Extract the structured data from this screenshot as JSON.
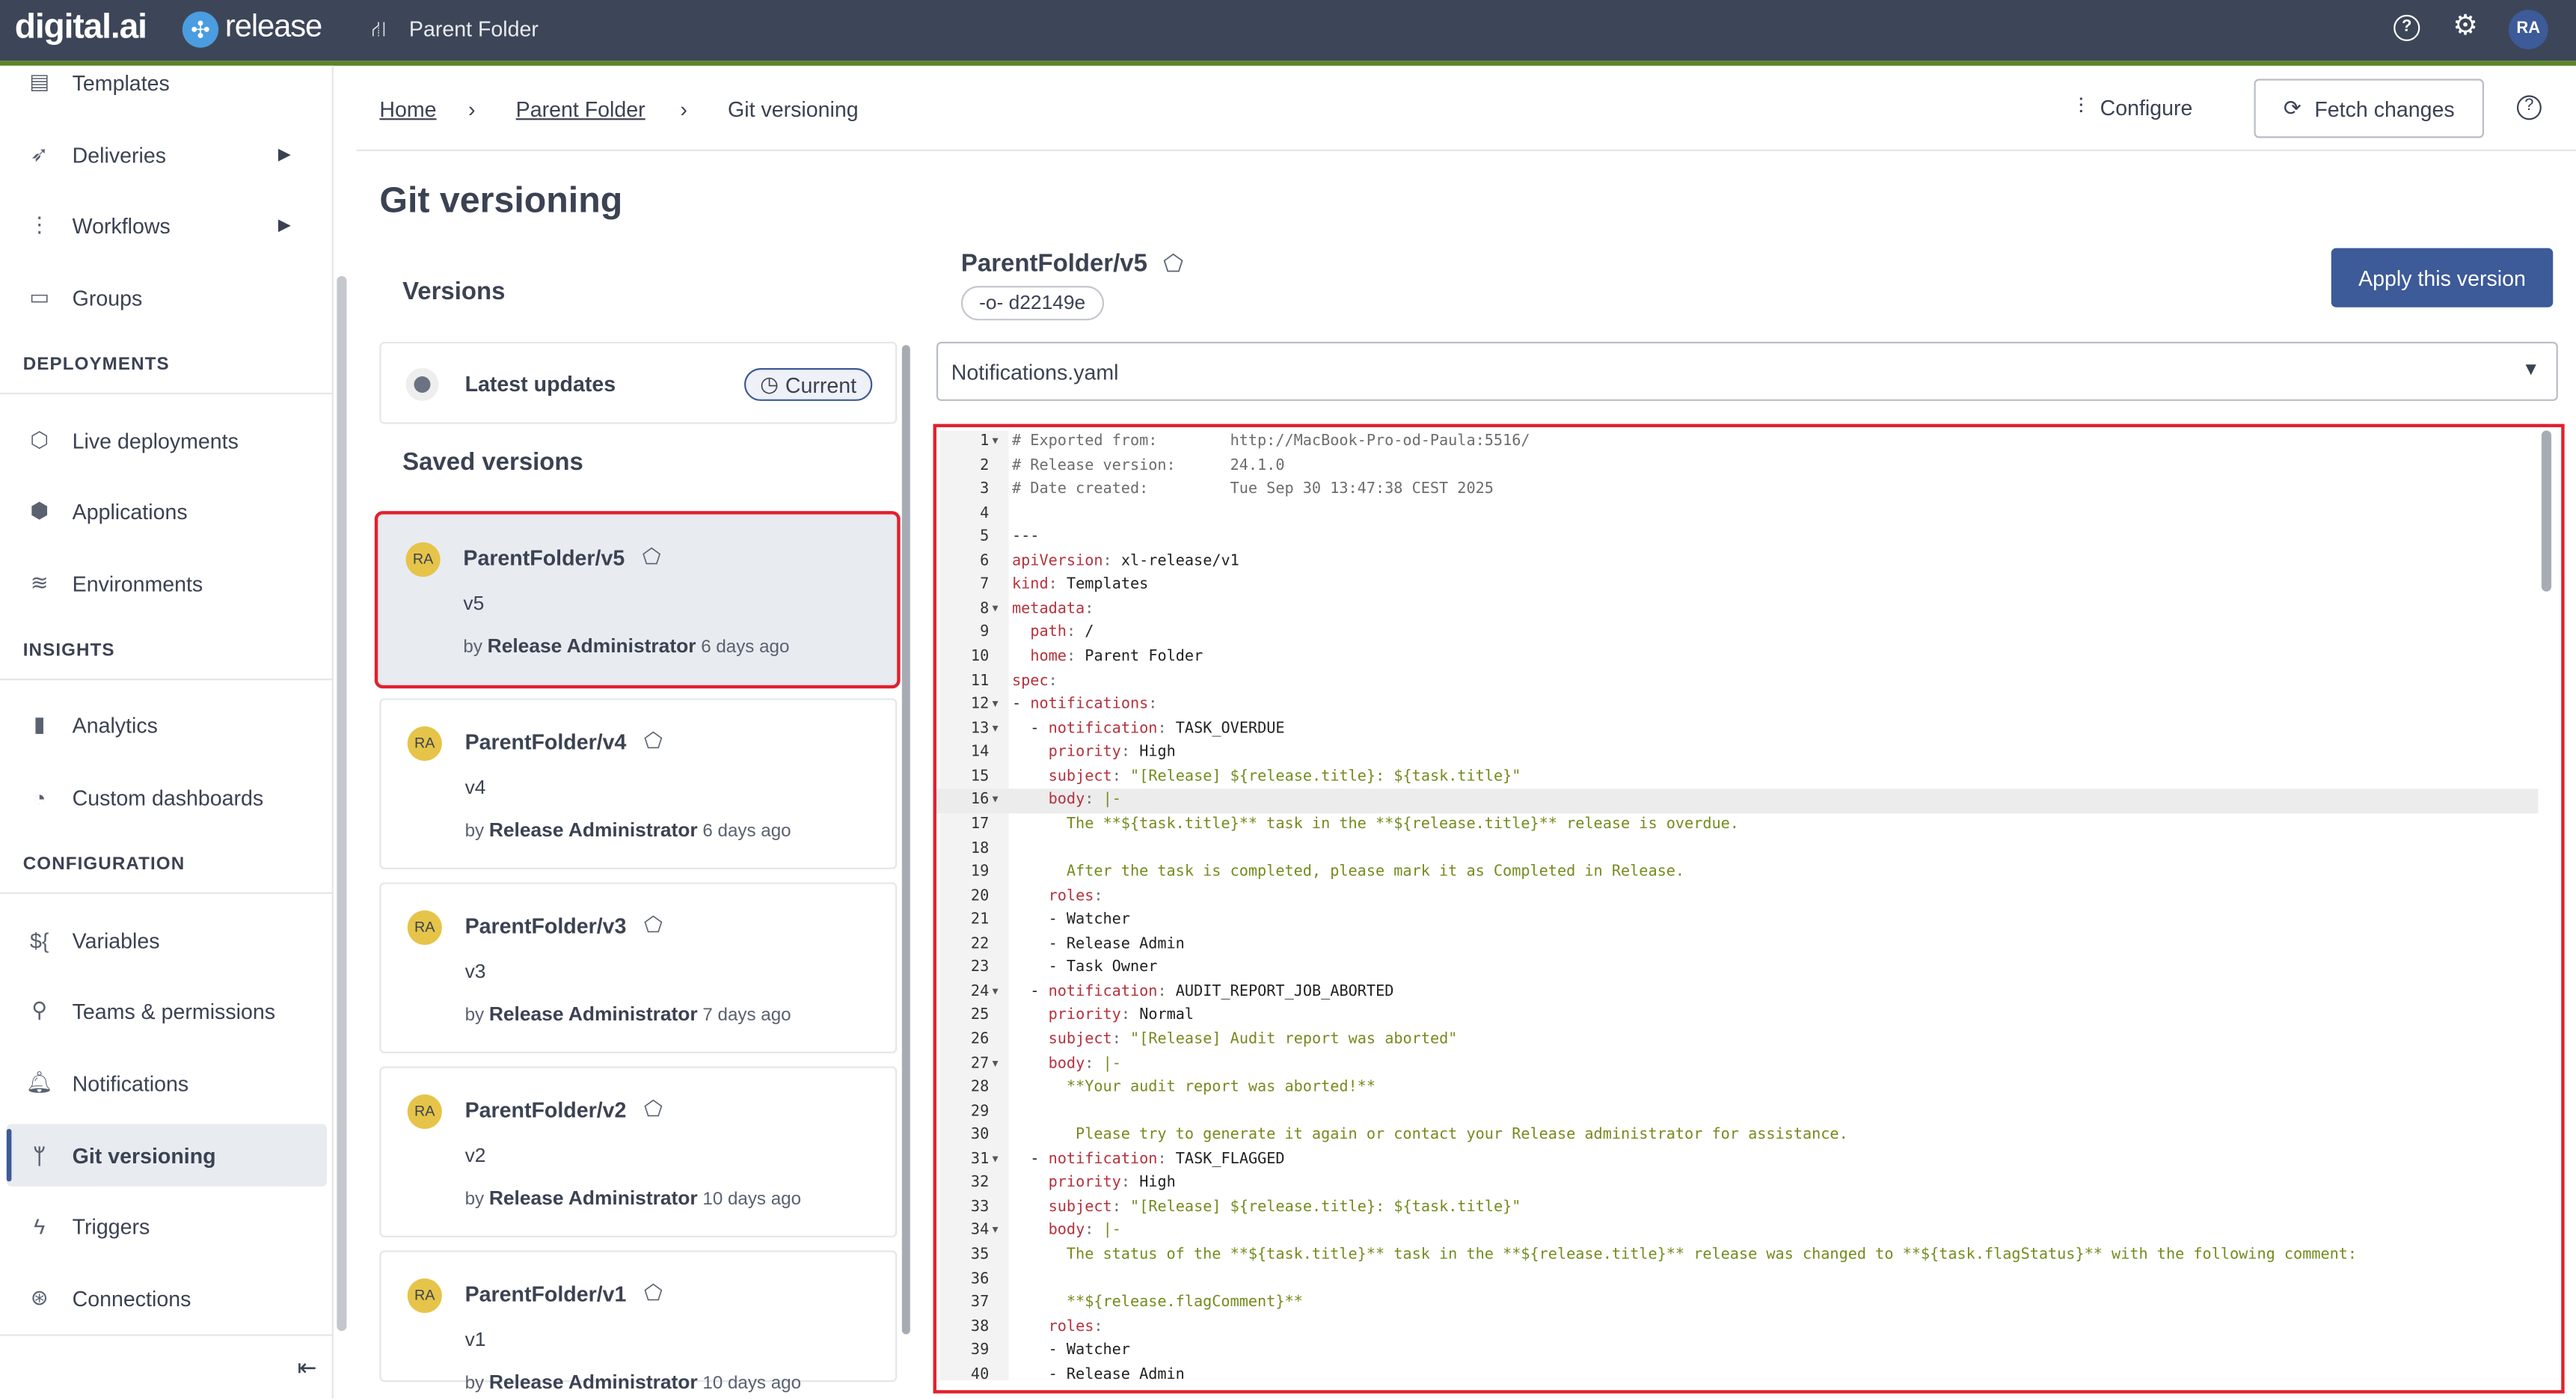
{
  "header": {
    "brand": "digital.ai",
    "product": "release",
    "folder": "Parent Folder",
    "avatar": "RA",
    "icons": [
      "help-icon",
      "gear-icon"
    ]
  },
  "sidebar": {
    "items": [
      {
        "label": "Templates",
        "icon": "template-icon"
      },
      {
        "label": "Deliveries",
        "icon": "rocket-icon",
        "arrow": true
      },
      {
        "label": "Workflows",
        "icon": "workflow-icon",
        "arrow": true
      },
      {
        "label": "Groups",
        "icon": "groups-icon"
      },
      {
        "label": "Live deployments",
        "icon": "cube-icon"
      },
      {
        "label": "Applications",
        "icon": "box-icon"
      },
      {
        "label": "Environments",
        "icon": "environment-icon"
      },
      {
        "label": "Analytics",
        "icon": "bar-chart-icon"
      },
      {
        "label": "Custom dashboards",
        "icon": "dashboard-icon"
      },
      {
        "label": "Variables",
        "icon": "variable-icon"
      },
      {
        "label": "Teams & permissions",
        "icon": "team-icon"
      },
      {
        "label": "Notifications",
        "icon": "bell-icon"
      },
      {
        "label": "Git versioning",
        "icon": "git-branch-icon",
        "active": true
      },
      {
        "label": "Triggers",
        "icon": "lightning-icon"
      },
      {
        "label": "Connections",
        "icon": "connection-icon"
      }
    ],
    "sections": [
      "DEPLOYMENTS",
      "INSIGHTS",
      "CONFIGURATION"
    ]
  },
  "breadcrumb": [
    "Home",
    "Parent Folder",
    "Git versioning"
  ],
  "toolbar": {
    "configure": "Configure",
    "fetch": "Fetch changes"
  },
  "page": {
    "title": "Git versioning"
  },
  "versions": {
    "title": "Versions",
    "latest": "Latest updates",
    "current": "Current",
    "saved_title": "Saved versions",
    "items": [
      {
        "name": "ParentFolder/v5",
        "version": "v5",
        "by": "by",
        "author": "Release Administrator",
        "ago": "6 days ago",
        "avatar": "RA",
        "selected": true
      },
      {
        "name": "ParentFolder/v4",
        "version": "v4",
        "by": "by",
        "author": "Release Administrator",
        "ago": "6 days ago",
        "avatar": "RA"
      },
      {
        "name": "ParentFolder/v3",
        "version": "v3",
        "by": "by",
        "author": "Release Administrator",
        "ago": "7 days ago",
        "avatar": "RA"
      },
      {
        "name": "ParentFolder/v2",
        "version": "v2",
        "by": "by",
        "author": "Release Administrator",
        "ago": "10 days ago",
        "avatar": "RA"
      },
      {
        "name": "ParentFolder/v1",
        "version": "v1",
        "by": "by",
        "author": "Release Administrator",
        "ago": "10 days ago",
        "avatar": "RA"
      }
    ]
  },
  "detail": {
    "name": "ParentFolder/v5",
    "commit": "d22149e",
    "apply": "Apply this version",
    "file": "Notifications.yaml"
  },
  "editor": {
    "highlight_line": 16,
    "fold_lines": [
      1,
      8,
      12,
      13,
      16,
      24,
      27,
      31,
      34
    ],
    "lines": [
      [
        [
          "c",
          "# Exported from:        http://MacBook-Pro-od-Paula:5516/"
        ]
      ],
      [
        [
          "c",
          "# Release version:      24.1.0"
        ]
      ],
      [
        [
          "c",
          "# Date created:         Tue Sep 30 13:47:38 CEST 2025"
        ]
      ],
      [],
      [
        [
          "p",
          "---"
        ]
      ],
      [
        [
          "k",
          "apiVersion"
        ],
        [
          "c",
          ": "
        ],
        [
          "p",
          "xl-release/v1"
        ]
      ],
      [
        [
          "k",
          "kind"
        ],
        [
          "c",
          ": "
        ],
        [
          "p",
          "Templates"
        ]
      ],
      [
        [
          "k",
          "metadata"
        ],
        [
          "c",
          ":"
        ]
      ],
      [
        [
          "p",
          "  "
        ],
        [
          "k",
          "path"
        ],
        [
          "c",
          ": "
        ],
        [
          "p",
          "/"
        ]
      ],
      [
        [
          "p",
          "  "
        ],
        [
          "k",
          "home"
        ],
        [
          "c",
          ": "
        ],
        [
          "p",
          "Parent Folder"
        ]
      ],
      [
        [
          "k",
          "spec"
        ],
        [
          "c",
          ":"
        ]
      ],
      [
        [
          "p",
          "- "
        ],
        [
          "k",
          "notifications"
        ],
        [
          "c",
          ":"
        ]
      ],
      [
        [
          "p",
          "  - "
        ],
        [
          "k",
          "notification"
        ],
        [
          "c",
          ": "
        ],
        [
          "p",
          "TASK_OVERDUE"
        ]
      ],
      [
        [
          "p",
          "    "
        ],
        [
          "k",
          "priority"
        ],
        [
          "c",
          ": "
        ],
        [
          "p",
          "High"
        ]
      ],
      [
        [
          "p",
          "    "
        ],
        [
          "k",
          "subject"
        ],
        [
          "c",
          ": "
        ],
        [
          "s",
          "\"[Release] ${release.title}: ${task.title}\""
        ]
      ],
      [
        [
          "p",
          "    "
        ],
        [
          "k",
          "body"
        ],
        [
          "c",
          ": "
        ],
        [
          "s",
          "|-"
        ]
      ],
      [
        [
          "s",
          "      The **${task.title}** task in the **${release.title}** release is overdue."
        ]
      ],
      [],
      [
        [
          "s",
          "      After the task is completed, please mark it as Completed in Release."
        ]
      ],
      [
        [
          "p",
          "    "
        ],
        [
          "k",
          "roles"
        ],
        [
          "c",
          ":"
        ]
      ],
      [
        [
          "p",
          "    - Watcher"
        ]
      ],
      [
        [
          "p",
          "    - Release Admin"
        ]
      ],
      [
        [
          "p",
          "    - Task Owner"
        ]
      ],
      [
        [
          "p",
          "  - "
        ],
        [
          "k",
          "notification"
        ],
        [
          "c",
          ": "
        ],
        [
          "p",
          "AUDIT_REPORT_JOB_ABORTED"
        ]
      ],
      [
        [
          "p",
          "    "
        ],
        [
          "k",
          "priority"
        ],
        [
          "c",
          ": "
        ],
        [
          "p",
          "Normal"
        ]
      ],
      [
        [
          "p",
          "    "
        ],
        [
          "k",
          "subject"
        ],
        [
          "c",
          ": "
        ],
        [
          "s",
          "\"[Release] Audit report was aborted\""
        ]
      ],
      [
        [
          "p",
          "    "
        ],
        [
          "k",
          "body"
        ],
        [
          "c",
          ": "
        ],
        [
          "s",
          "|-"
        ]
      ],
      [
        [
          "s",
          "      **Your audit report was aborted!**"
        ]
      ],
      [],
      [
        [
          "s",
          "       Please try to generate it again or contact your Release administrator for assistance."
        ]
      ],
      [
        [
          "p",
          "  - "
        ],
        [
          "k",
          "notification"
        ],
        [
          "c",
          ": "
        ],
        [
          "p",
          "TASK_FLAGGED"
        ]
      ],
      [
        [
          "p",
          "    "
        ],
        [
          "k",
          "priority"
        ],
        [
          "c",
          ": "
        ],
        [
          "p",
          "High"
        ]
      ],
      [
        [
          "p",
          "    "
        ],
        [
          "k",
          "subject"
        ],
        [
          "c",
          ": "
        ],
        [
          "s",
          "\"[Release] ${release.title}: ${task.title}\""
        ]
      ],
      [
        [
          "p",
          "    "
        ],
        [
          "k",
          "body"
        ],
        [
          "c",
          ": "
        ],
        [
          "s",
          "|-"
        ]
      ],
      [
        [
          "s",
          "      The status of the **${task.title}** task in the **${release.title}** release was changed to **${task.flagStatus}** with the following comment:"
        ]
      ],
      [],
      [
        [
          "s",
          "      **${release.flagComment}**"
        ]
      ],
      [
        [
          "p",
          "    "
        ],
        [
          "k",
          "roles"
        ],
        [
          "c",
          ":"
        ]
      ],
      [
        [
          "p",
          "    - Watcher"
        ]
      ],
      [
        [
          "p",
          "    - Release Admin"
        ]
      ]
    ]
  }
}
